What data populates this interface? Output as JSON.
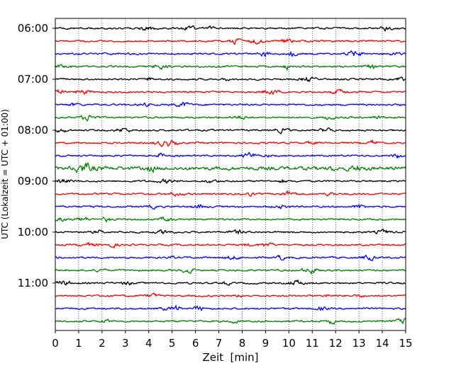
{
  "chart_data": {
    "type": "line",
    "title": "",
    "xlabel": "Zeit  [min]",
    "ylabel": "UTC (Lokalzeit = UTC + 01:00)",
    "xlim": [
      0,
      15
    ],
    "x_ticks": [
      "0",
      "1",
      "2",
      "3",
      "4",
      "5",
      "6",
      "7",
      "8",
      "9",
      "10",
      "11",
      "12",
      "13",
      "14",
      "15"
    ],
    "y_ticks": [
      "06:00",
      "07:00",
      "08:00",
      "09:00",
      "10:00",
      "11:00"
    ],
    "grid": "vertical dotted at each minute",
    "trace_interval_min": 15,
    "trace_colors": [
      "#000000",
      "#ff0000",
      "#0000ff",
      "#008000"
    ],
    "traces": [
      {
        "start": "06:00",
        "color": "#000000"
      },
      {
        "start": "06:15",
        "color": "#ff0000"
      },
      {
        "start": "06:30",
        "color": "#0000ff"
      },
      {
        "start": "06:45",
        "color": "#008000"
      },
      {
        "start": "07:00",
        "color": "#000000"
      },
      {
        "start": "07:15",
        "color": "#ff0000"
      },
      {
        "start": "07:30",
        "color": "#0000ff"
      },
      {
        "start": "07:45",
        "color": "#008000"
      },
      {
        "start": "08:00",
        "color": "#000000"
      },
      {
        "start": "08:15",
        "color": "#ff0000"
      },
      {
        "start": "08:30",
        "color": "#0000ff"
      },
      {
        "start": "08:45",
        "color": "#008000"
      },
      {
        "start": "09:00",
        "color": "#000000"
      },
      {
        "start": "09:15",
        "color": "#ff0000"
      },
      {
        "start": "09:30",
        "color": "#0000ff"
      },
      {
        "start": "09:45",
        "color": "#008000"
      },
      {
        "start": "10:00",
        "color": "#000000"
      },
      {
        "start": "10:15",
        "color": "#ff0000"
      },
      {
        "start": "10:30",
        "color": "#0000ff"
      },
      {
        "start": "10:45",
        "color": "#008000"
      },
      {
        "start": "11:00",
        "color": "#000000"
      },
      {
        "start": "11:15",
        "color": "#ff0000"
      },
      {
        "start": "11:30",
        "color": "#0000ff"
      },
      {
        "start": "11:45",
        "color": "#008000"
      }
    ]
  }
}
